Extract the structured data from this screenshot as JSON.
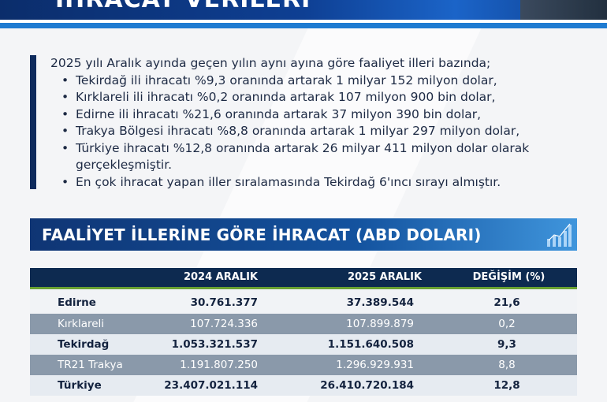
{
  "banner": {
    "title": "İHRACAT VERİLERİ"
  },
  "summary": {
    "intro": "2025 yılı Aralık ayında geçen yılın aynı ayına göre faaliyet illeri bazında;",
    "bullets": [
      "Tekirdağ ili ihracatı %9,3 oranında artarak 1 milyar 152 milyon dolar,",
      "Kırklareli ili ihracatı %0,2 oranında artarak 107 milyon 900 bin dolar,",
      "Edirne ili ihracatı %21,6 oranında artarak 37 milyon 390 bin dolar,",
      "Trakya Bölgesi ihracatı %8,8 oranında artarak 1 milyar 297 milyon dolar,",
      "Türkiye ihracatı %12,8 oranında artarak 26 milyar 411 milyon dolar olarak gerçekleşmiştir.",
      "En çok ihracat yapan iller sıralamasında Tekirdağ 6'ıncı sırayı almıştır."
    ]
  },
  "section": {
    "title": "FAALİYET İLLERİNE GÖRE İHRACAT (ABD DOLARI)",
    "icon": "bar-chart-growth-icon"
  },
  "table": {
    "headers": [
      "",
      "2024 ARALIK",
      "2025 ARALIK",
      "DEĞİŞİM (%)"
    ],
    "rows": [
      [
        "Edirne",
        "30.761.377",
        "37.389.544",
        "21,6"
      ],
      [
        "Kırklareli",
        "107.724.336",
        "107.899.879",
        "0,2"
      ],
      [
        "Tekirdağ",
        "1.053.321.537",
        "1.151.640.508",
        "9,3"
      ],
      [
        "TR21 Trakya",
        "1.191.807.250",
        "1.296.929.931",
        "8,8"
      ],
      [
        "Türkiye",
        "23.407.021.114",
        "26.410.720.184",
        "12,8"
      ]
    ]
  },
  "colors": {
    "navy": "#0d2a50",
    "accent_blue": "#1e7bd1",
    "accent_green": "#6aa232",
    "row_gray": "#8a99aa"
  }
}
